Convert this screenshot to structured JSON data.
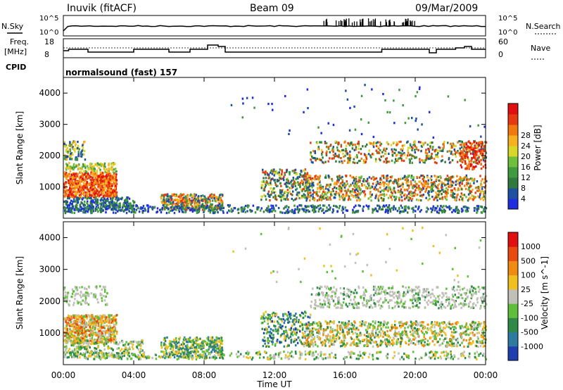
{
  "header": {
    "station": "Inuvik (fitACF)",
    "beam": "Beam 09",
    "date": "09/Mar/2009"
  },
  "left_labels": {
    "nsky": "N.Sky",
    "freq": "Freq.",
    "freq_unit": "[MHz]",
    "cpid": "CPID"
  },
  "right_labels": {
    "nsearch": "N.Search",
    "nave": "Nave"
  },
  "cpid_text": "normalsound (fast) 157",
  "noise_panel": {
    "ticks_left": [
      "10^5",
      "10^0"
    ],
    "ticks_right": [
      "10^5",
      "10^0"
    ]
  },
  "freq_panel": {
    "ticks_left": [
      "18",
      "8"
    ],
    "ticks_right": [
      "60",
      "0"
    ]
  },
  "chart_data": [
    {
      "type": "heatmap",
      "name": "power",
      "ylabel": "Slant Range [km]",
      "yticks": [
        "1000",
        "2000",
        "3000",
        "4000"
      ],
      "colorbar": {
        "label": "Power [dB]",
        "ticks": [
          "4",
          "8",
          "12",
          "16",
          "20",
          "24",
          "28"
        ],
        "colors": [
          "#1f2fe0",
          "#2050a0",
          "#2f7a3c",
          "#3f9a40",
          "#6fbf3a",
          "#d9d62a",
          "#f7b020",
          "#f07a10",
          "#e83a10",
          "#e01010"
        ]
      }
    },
    {
      "type": "heatmap",
      "name": "velocity",
      "ylabel": "Slant Range [km]",
      "yticks": [
        "1000",
        "2000",
        "3000",
        "4000"
      ],
      "colorbar": {
        "label": "Velocity [m s^-1]",
        "ticks": [
          "1000",
          "500",
          "100",
          "25",
          "-25",
          "-100",
          "-500",
          "-1000"
        ],
        "colors": [
          "#1f3fb0",
          "#2f7aa0",
          "#2f8a4a",
          "#5fbf3a",
          "#c0c0b8",
          "#f0c020",
          "#f08a10",
          "#e84a10",
          "#e01010"
        ]
      }
    }
  ],
  "xaxis": {
    "ticks": [
      "00:00",
      "04:00",
      "08:00",
      "12:00",
      "16:00",
      "20:00",
      "00:00"
    ],
    "label": "Time UT"
  }
}
